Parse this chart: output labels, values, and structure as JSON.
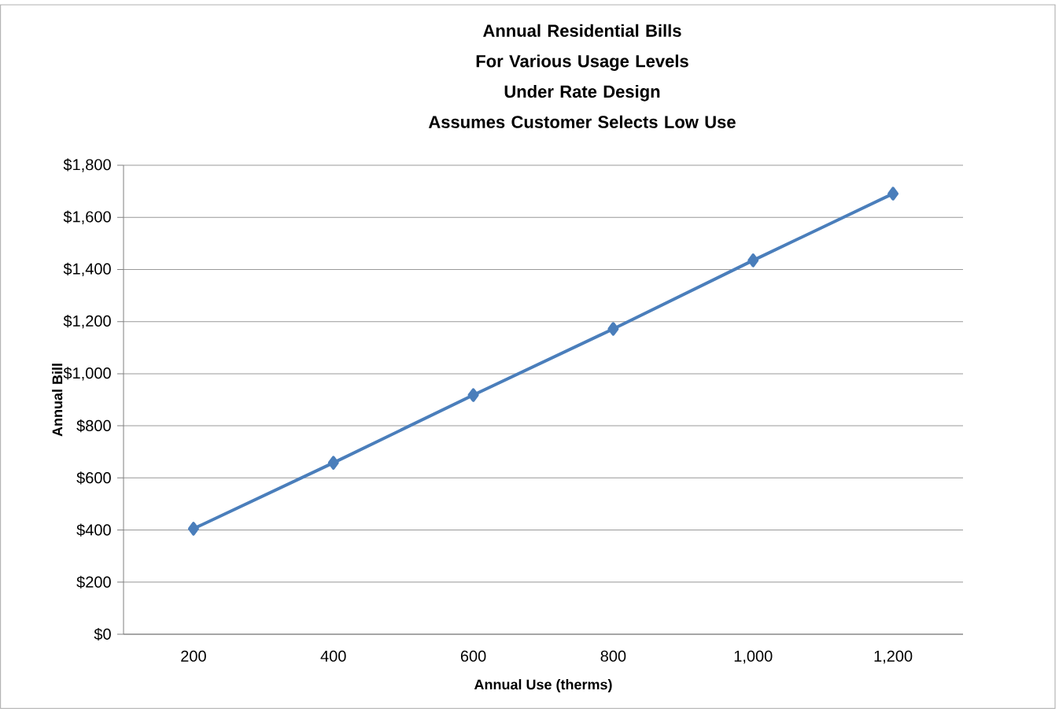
{
  "chart_data": {
    "type": "line",
    "title": "Annual Residential Bills\nFor Various Usage Levels\nUnder Rate Design\nAssumes Customer Selects Low Use",
    "xlabel": "Annual Use (therms)",
    "ylabel": "Annual Bill",
    "categories": [
      "200",
      "400",
      "600",
      "800",
      "1,000",
      "1,200"
    ],
    "series": [
      {
        "color": "#4a7ebb",
        "values": [
          405,
          658,
          918,
          1172,
          1435,
          1691
        ]
      }
    ],
    "ylim": [
      0,
      1800
    ],
    "yticks": [
      {
        "value": 0,
        "label": "$0"
      },
      {
        "value": 200,
        "label": "$200"
      },
      {
        "value": 400,
        "label": "$400"
      },
      {
        "value": 600,
        "label": "$600"
      },
      {
        "value": 800,
        "label": "$800"
      },
      {
        "value": 1000,
        "label": "$1,000"
      },
      {
        "value": 1200,
        "label": "$1,200"
      },
      {
        "value": 1400,
        "label": "$1,400"
      },
      {
        "value": 1600,
        "label": "$1,600"
      },
      {
        "value": 1800,
        "label": "$1,800"
      }
    ],
    "grid": "y",
    "marker": "diamond",
    "line_style": "solid"
  }
}
